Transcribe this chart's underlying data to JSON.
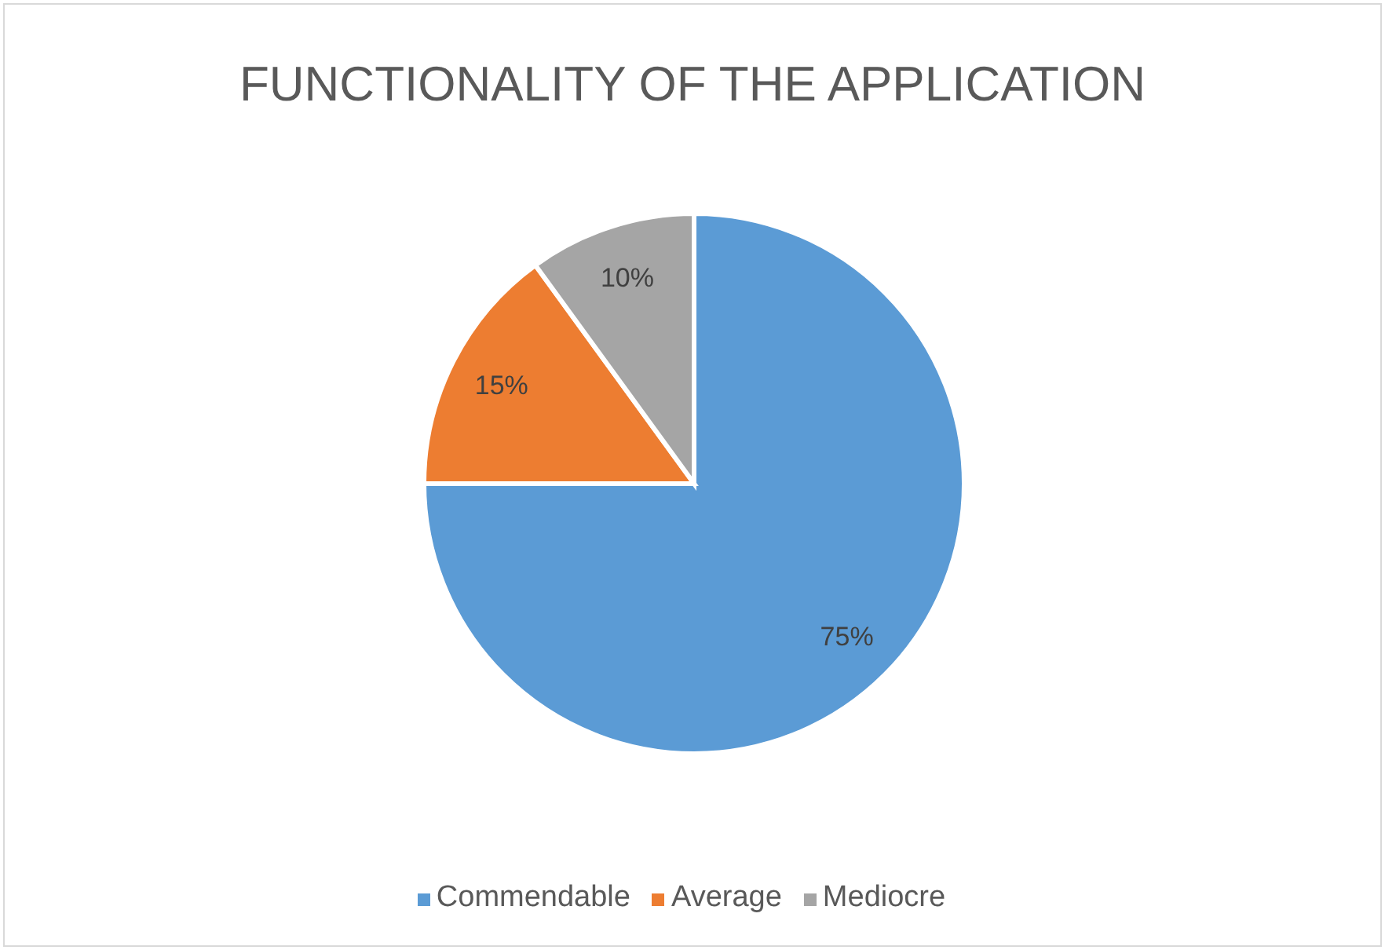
{
  "chart_data": {
    "type": "pie",
    "title": "FUNCTIONALITY OF THE APPLICATION",
    "categories": [
      "Commendable",
      "Average",
      "Mediocre"
    ],
    "values": [
      75,
      15,
      10
    ],
    "colors": [
      "#5b9bd5",
      "#ed7d31",
      "#a5a5a5"
    ],
    "value_labels": [
      "75%",
      "15%",
      "10%"
    ],
    "legend": "bottom"
  }
}
